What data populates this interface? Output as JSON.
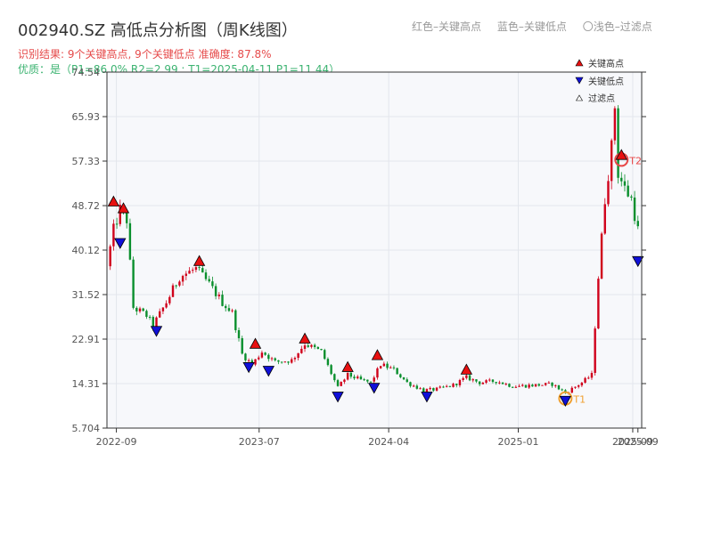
{
  "header": {
    "title": "002940.SZ 高低点分析图（周K线图）",
    "result_line": "识别结果: 9个关键高点, 9个关键低点   准确度: 87.8%",
    "quality_line": "优质：是（P1=86.0%  R2=2.99 ; T1=2025-04-11 P1=11.44）",
    "hint_red": "红色–关键高点",
    "hint_blue": "蓝色–关键低点",
    "hint_light": "〇浅色–过滤点"
  },
  "legend": {
    "high_label": "关键高点",
    "low_label": "关键低点",
    "filtered_label": "过滤点"
  },
  "colors": {
    "up": "#d0021b",
    "down": "#0a8f2d",
    "high_marker": "#e81010",
    "low_marker": "#1010d8",
    "t1_ring": "#f0a030",
    "t2_ring": "#e84848",
    "plot_bg": "#f7f8fb",
    "grid": "#e3e6ec"
  },
  "chart_data": {
    "type": "candlestick",
    "x_range": [
      "2022-08-12",
      "2025-09-20"
    ],
    "y_range": [
      5.704,
      74.54
    ],
    "y_ticks": [
      "5.704",
      "14.31",
      "22.91",
      "31.52",
      "40.12",
      "48.72",
      "57.33",
      "65.93",
      "74.54"
    ],
    "x_ticks": [
      {
        "date": "2022-09-01",
        "label": "2022-09"
      },
      {
        "date": "2023-07-01",
        "label": "2023-07"
      },
      {
        "date": "2024-04-01",
        "label": "2024-04"
      },
      {
        "date": "2025-01-01",
        "label": "2025-01"
      },
      {
        "date": "2025-09-01",
        "label": "2025-09"
      },
      {
        "date": "2025-09-12",
        "label": "2025-09"
      }
    ],
    "price_path": [
      [
        "2022-08-12",
        37.0
      ],
      [
        "2022-08-26",
        44.0
      ],
      [
        "2022-09-09",
        48.0
      ],
      [
        "2022-09-23",
        46.0
      ],
      [
        "2022-10-07",
        29.0
      ],
      [
        "2022-11-04",
        27.5
      ],
      [
        "2022-11-18",
        25.5
      ],
      [
        "2022-12-16",
        30.0
      ],
      [
        "2023-01-13",
        35.0
      ],
      [
        "2023-02-17",
        36.5
      ],
      [
        "2023-03-17",
        33.5
      ],
      [
        "2023-04-14",
        30.0
      ],
      [
        "2023-05-05",
        28.0
      ],
      [
        "2023-05-26",
        20.0
      ],
      [
        "2023-06-16",
        18.0
      ],
      [
        "2023-07-07",
        20.5
      ],
      [
        "2023-08-04",
        18.5
      ],
      [
        "2023-09-08",
        18.8
      ],
      [
        "2023-10-06",
        22.0
      ],
      [
        "2023-11-10",
        20.5
      ],
      [
        "2023-12-15",
        13.5
      ],
      [
        "2024-01-05",
        16.0
      ],
      [
        "2024-02-02",
        15.0
      ],
      [
        "2024-02-23",
        14.5
      ],
      [
        "2024-03-15",
        18.0
      ],
      [
        "2024-04-12",
        17.0
      ],
      [
        "2024-05-10",
        14.5
      ],
      [
        "2024-06-14",
        13.0
      ],
      [
        "2024-07-12",
        13.2
      ],
      [
        "2024-08-16",
        14.0
      ],
      [
        "2024-09-13",
        15.5
      ],
      [
        "2024-10-11",
        14.5
      ],
      [
        "2024-11-15",
        14.8
      ],
      [
        "2024-12-20",
        13.8
      ],
      [
        "2025-02-07",
        14.0
      ],
      [
        "2025-03-14",
        14.2
      ],
      [
        "2025-04-11",
        12.5
      ],
      [
        "2025-05-16",
        14.5
      ],
      [
        "2025-06-06",
        16.0
      ],
      [
        "2025-06-20",
        35.0
      ],
      [
        "2025-07-04",
        50.0
      ],
      [
        "2025-07-18",
        60.0
      ],
      [
        "2025-07-25",
        68.0
      ],
      [
        "2025-08-01",
        55.0
      ],
      [
        "2025-08-15",
        52.0
      ],
      [
        "2025-08-29",
        50.0
      ],
      [
        "2025-09-12",
        44.0
      ]
    ],
    "key_highs": [
      {
        "date": "2022-08-26",
        "price": 49.5
      },
      {
        "date": "2022-09-16",
        "price": 48.2
      },
      {
        "date": "2023-02-24",
        "price": 38.0
      },
      {
        "date": "2023-06-23",
        "price": 22.0
      },
      {
        "date": "2023-10-06",
        "price": 23.0
      },
      {
        "date": "2024-01-05",
        "price": 17.5
      },
      {
        "date": "2024-03-08",
        "price": 19.8
      },
      {
        "date": "2024-09-13",
        "price": 17.0
      },
      {
        "date": "2025-08-08",
        "price": 58.5
      }
    ],
    "key_lows": [
      {
        "date": "2022-09-09",
        "price": 41.5
      },
      {
        "date": "2022-11-25",
        "price": 24.5
      },
      {
        "date": "2023-06-09",
        "price": 17.5
      },
      {
        "date": "2023-07-21",
        "price": 16.8
      },
      {
        "date": "2023-12-15",
        "price": 11.8
      },
      {
        "date": "2024-03-01",
        "price": 13.5
      },
      {
        "date": "2024-06-21",
        "price": 11.8
      },
      {
        "date": "2025-04-11",
        "price": 11.0
      },
      {
        "date": "2025-09-12",
        "price": 38.0
      }
    ],
    "annotations": [
      {
        "label": "T1",
        "date": "2025-04-11",
        "price": 11.44
      },
      {
        "label": "T2",
        "date": "2025-08-08",
        "price": 57.6
      }
    ]
  }
}
